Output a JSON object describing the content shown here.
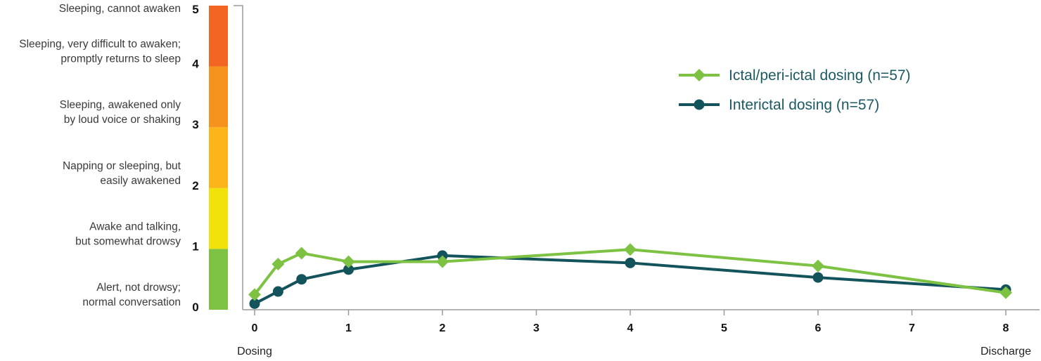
{
  "chart_data": {
    "type": "line",
    "title": "",
    "xlabel": "",
    "ylabel": "",
    "ylim": [
      0,
      5
    ],
    "xlim": [
      0,
      8
    ],
    "x_ticks": [
      "0",
      "1",
      "2",
      "3",
      "4",
      "5",
      "6",
      "7",
      "8"
    ],
    "x_sublabels": [
      {
        "at": 0,
        "text": "Dosing"
      },
      {
        "at": 8,
        "text": "Discharge"
      }
    ],
    "y_ticks": [
      "0",
      "1",
      "2",
      "3",
      "4",
      "5"
    ],
    "y_levels": [
      {
        "value": 0,
        "lines": [
          "Alert, not drowsy;",
          "normal conversation"
        ],
        "color": "#7dc242"
      },
      {
        "value": 1,
        "lines": [
          "Awake and talking,",
          "but somewhat drowsy"
        ],
        "color": "#f1e20c"
      },
      {
        "value": 2,
        "lines": [
          "Napping or sleeping, but",
          "easily awakened"
        ],
        "color": "#fbb41a"
      },
      {
        "value": 3,
        "lines": [
          "Sleeping, awakened only",
          "by loud voice or shaking"
        ],
        "color": "#f6921e"
      },
      {
        "value": 4,
        "lines": [
          "Sleeping, very difficult to awaken;",
          "promptly returns to sleep"
        ],
        "color": "#f26522"
      },
      {
        "value": 5,
        "lines": [
          "Sleeping, cannot awaken"
        ]
      }
    ],
    "grid": false,
    "legend_position": "top-right",
    "series": [
      {
        "name": "Ictal/peri-ictal dosing (n=57)",
        "color": "#7dc242",
        "marker": "diamond",
        "x": [
          0,
          0.25,
          0.5,
          1,
          2,
          4,
          6,
          8
        ],
        "y": [
          0.25,
          0.75,
          0.93,
          0.79,
          0.79,
          0.99,
          0.72,
          0.28
        ]
      },
      {
        "name": "Interictal dosing (n=57)",
        "color": "#13535c",
        "marker": "circle",
        "x": [
          0,
          0.25,
          0.5,
          1,
          2,
          4,
          6,
          8
        ],
        "y": [
          0.1,
          0.3,
          0.5,
          0.66,
          0.89,
          0.77,
          0.53,
          0.33
        ]
      }
    ]
  }
}
